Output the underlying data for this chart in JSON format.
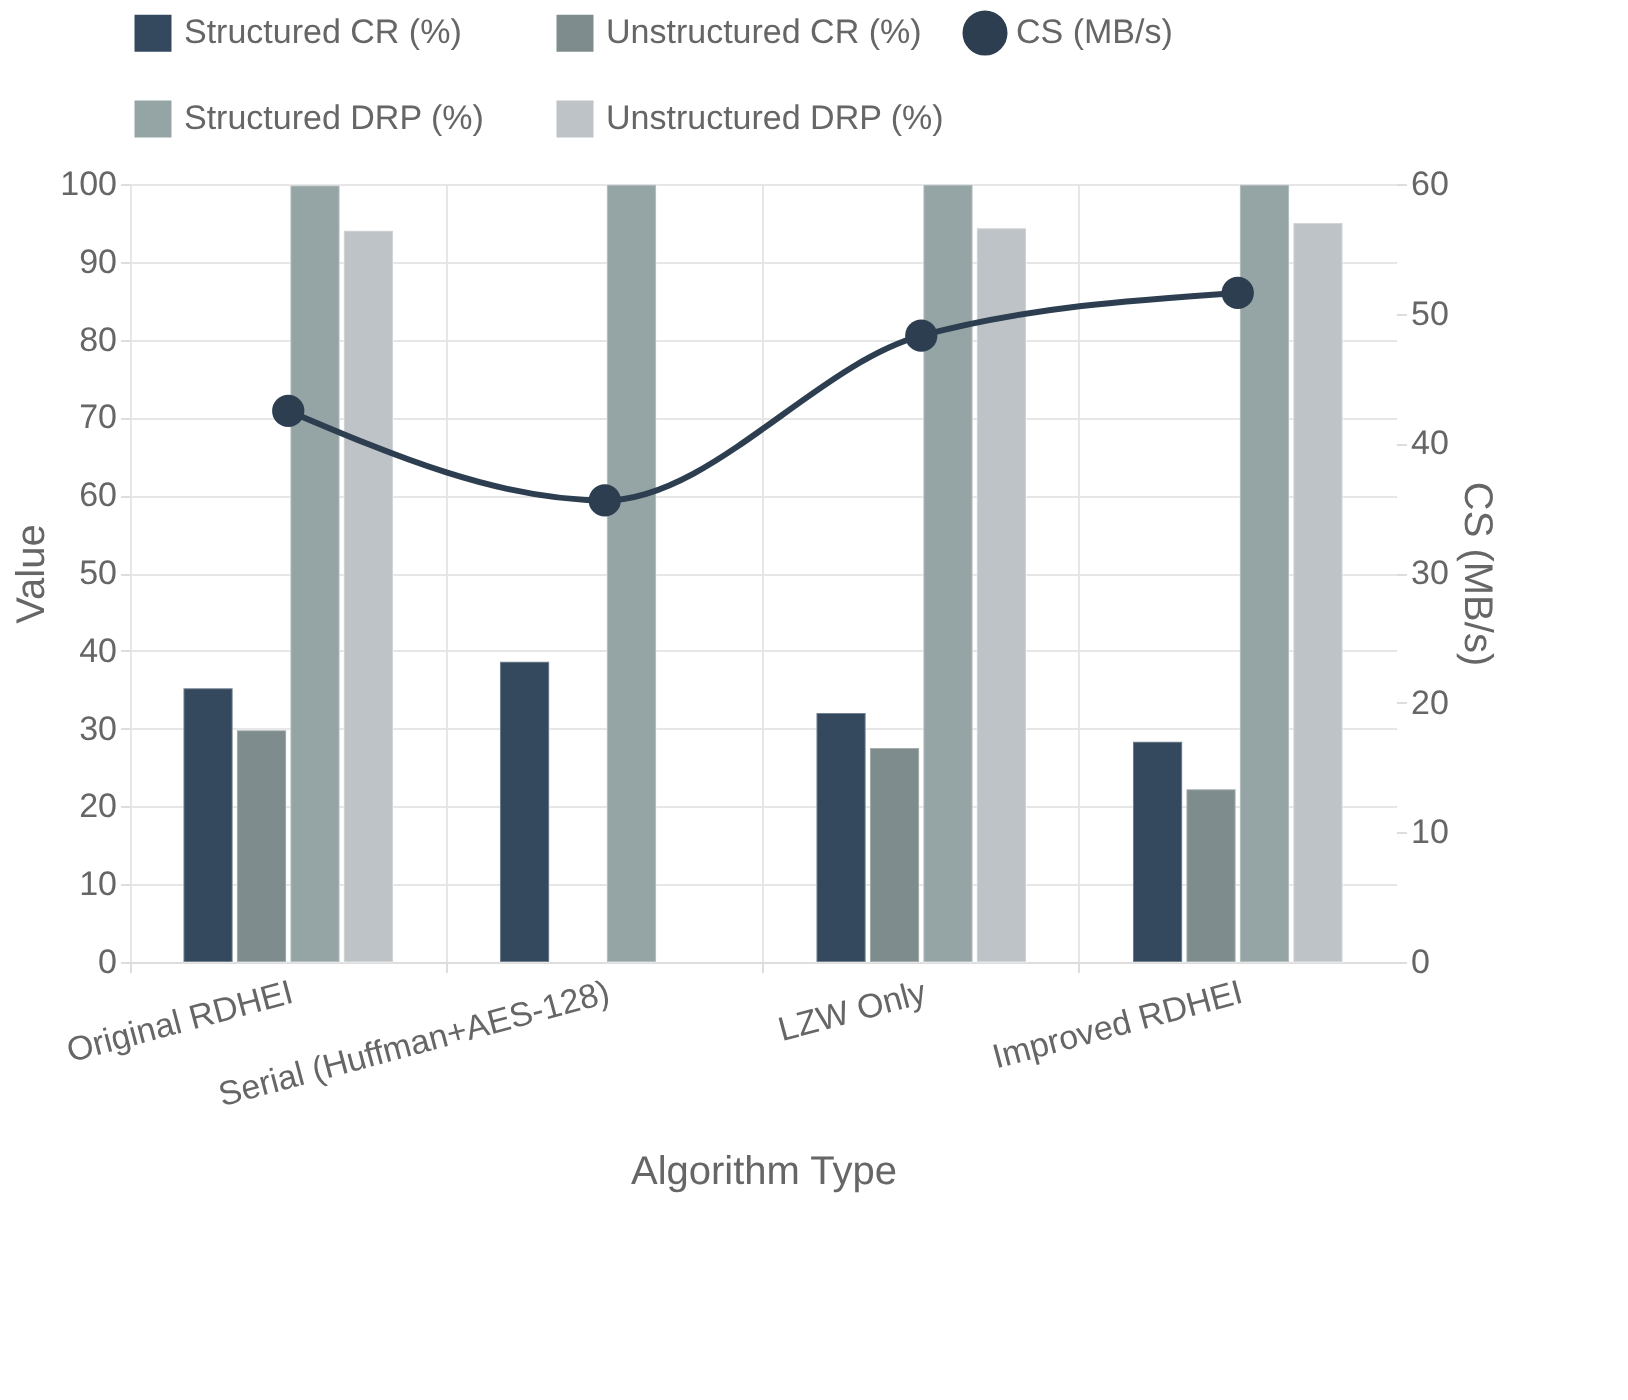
{
  "chart_data": {
    "type": "bar",
    "xlabel": "Algorithm Type",
    "ylabel": "Value",
    "y2label": "CS (MB/s)",
    "categories": [
      "Original RDHEI",
      "Serial (Huffman+AES-128)",
      "LZW Only",
      "Improved RDHEI"
    ],
    "series": [
      {
        "name": "Structured CR (%)",
        "color": "#34495e",
        "values": [
          35.2,
          38.6,
          32,
          28.3
        ]
      },
      {
        "name": "Unstructured CR (%)",
        "color": "#7f8c8d",
        "values": [
          29.8,
          null,
          27.5,
          22.2
        ]
      },
      {
        "name": "Structured DRP (%)",
        "color": "#95a5a6",
        "values": [
          99.8,
          99.9,
          99.9,
          99.9
        ]
      },
      {
        "name": "Unstructured DRP (%)",
        "color": "#bdc3c7",
        "values": [
          94,
          null,
          94.3,
          95
        ]
      },
      {
        "name": "CS (MB/s)",
        "type": "line",
        "axis": "y2",
        "color": "#2c3e50",
        "values": [
          42.5,
          35.6,
          48.3,
          51.6
        ]
      }
    ],
    "ylim": [
      0,
      100
    ],
    "yticks": [
      0,
      10,
      20,
      30,
      40,
      50,
      60,
      70,
      80,
      90,
      100
    ],
    "y2lim": [
      0,
      60
    ],
    "y2ticks": [
      0,
      10,
      20,
      30,
      40,
      50,
      60
    ],
    "grid": true,
    "legend": "top",
    "marker": "circle"
  }
}
